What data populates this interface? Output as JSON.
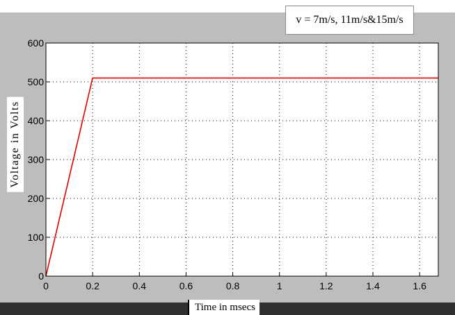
{
  "chart_data": {
    "type": "line",
    "title": "",
    "xlabel": "Time in msecs",
    "ylabel": "Voltage in Volts",
    "annotation": "v = 7m/s, 11m/s&15m/s",
    "xlim": [
      0,
      1.68
    ],
    "ylim": [
      0,
      600
    ],
    "xticks": [
      "0",
      "0.2",
      "0.4",
      "0.6",
      "0.8",
      "1",
      "1.2",
      "1.4",
      "1.6"
    ],
    "yticks": [
      "0",
      "100",
      "200",
      "300",
      "400",
      "500",
      "600"
    ],
    "grid": true,
    "series": [
      {
        "color": "#e00000",
        "x": [
          0,
          0.2,
          1.68
        ],
        "y": [
          0,
          510,
          510
        ]
      }
    ]
  }
}
